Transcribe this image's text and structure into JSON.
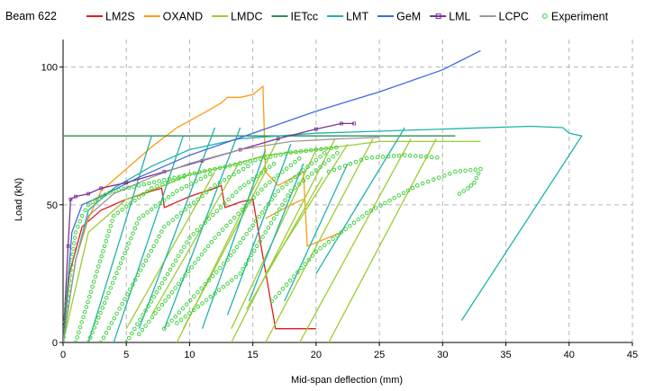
{
  "chart_data": {
    "type": "line",
    "title": "Beam 622",
    "xlabel": "Mid-span deflection (mm)",
    "ylabel": "Load (kN)",
    "xlim": [
      0,
      45
    ],
    "ylim": [
      0,
      110
    ],
    "xticks": [
      0,
      5,
      10,
      15,
      20,
      25,
      30,
      35,
      40,
      45
    ],
    "yticks": [
      0,
      50,
      100
    ],
    "grid": "dashed",
    "legend_position": "top",
    "series": [
      {
        "name": "LM2S",
        "color": "#e41a1c",
        "marker": "none",
        "segments": [
          [
            [
              0,
              0
            ],
            [
              0.5,
              25
            ],
            [
              1.5,
              42
            ],
            [
              3,
              48
            ],
            [
              5,
              52
            ],
            [
              7,
              55
            ],
            [
              7.8,
              56
            ],
            [
              8,
              49
            ],
            [
              9,
              51
            ],
            [
              10,
              53
            ],
            [
              12,
              56
            ],
            [
              12.5,
              57
            ],
            [
              12.8,
              49
            ],
            [
              14,
              51
            ],
            [
              15,
              52
            ],
            [
              16.8,
              5
            ],
            [
              20,
              5
            ]
          ]
        ]
      },
      {
        "name": "OXAND",
        "color": "#ff9912",
        "marker": "none",
        "segments": [
          [
            [
              0,
              0
            ],
            [
              1,
              30
            ],
            [
              2,
              45
            ],
            [
              3,
              55
            ],
            [
              5,
              63
            ],
            [
              7,
              71
            ],
            [
              9,
              78
            ],
            [
              11,
              83
            ],
            [
              12.5,
              87
            ],
            [
              13,
              89
            ],
            [
              14,
              89
            ],
            [
              15,
              90
            ],
            [
              15.8,
              93
            ],
            [
              16,
              62
            ],
            [
              17,
              57
            ],
            [
              19,
              62
            ],
            [
              19.3,
              35
            ],
            [
              22,
              40
            ]
          ],
          [
            [
              16,
              45
            ],
            [
              18,
              50
            ],
            [
              19,
              52
            ]
          ]
        ]
      },
      {
        "name": "LMDC",
        "color": "#9acd32",
        "marker": "none",
        "segments": [
          [
            [
              0,
              0
            ],
            [
              2,
              40
            ],
            [
              5,
              52
            ],
            [
              8,
              57
            ],
            [
              10,
              61
            ],
            [
              13,
              64
            ],
            [
              16,
              68
            ],
            [
              20,
              70
            ],
            [
              25,
              73
            ],
            [
              33,
              73
            ]
          ],
          [
            [
              9,
              0
            ],
            [
              17,
              74
            ]
          ],
          [
            [
              13.3,
              0
            ],
            [
              21.5,
              74
            ]
          ],
          [
            [
              16,
              0
            ],
            [
              24.5,
              74
            ]
          ],
          [
            [
              18.7,
              0
            ],
            [
              27.5,
              74
            ]
          ],
          [
            [
              21,
              0
            ],
            [
              29.5,
              74
            ]
          ],
          [
            [
              9.5,
              5
            ],
            [
              16,
              62
            ]
          ],
          [
            [
              13.3,
              5
            ],
            [
              20,
              70
            ]
          ],
          [
            [
              14.5,
              12
            ],
            [
              20.5,
              60
            ]
          ],
          [
            [
              16,
              25
            ],
            [
              22.5,
              72
            ]
          ],
          [
            [
              5,
              5
            ],
            [
              12,
              62
            ]
          ],
          [
            [
              7,
              10
            ],
            [
              14,
              66
            ]
          ]
        ]
      },
      {
        "name": "IETcc",
        "color": "#2e8b57",
        "marker": "none",
        "segments": [
          [
            [
              0,
              75
            ],
            [
              31,
              75
            ]
          ]
        ]
      },
      {
        "name": "LMT",
        "color": "#20b2aa",
        "marker": "none",
        "segments": [
          [
            [
              0,
              0
            ],
            [
              1,
              30
            ],
            [
              2,
              48
            ],
            [
              4,
              56
            ],
            [
              7,
              64
            ],
            [
              10,
              70
            ],
            [
              14,
              74
            ],
            [
              20,
              76
            ],
            [
              30,
              77.5
            ],
            [
              37,
              78.5
            ],
            [
              39.5,
              78
            ],
            [
              40,
              76
            ],
            [
              41,
              75
            ],
            [
              31.5,
              8
            ]
          ],
          [
            [
              2,
              0
            ],
            [
              7,
              75
            ]
          ],
          [
            [
              4,
              0
            ],
            [
              9.5,
              75
            ]
          ],
          [
            [
              6,
              5
            ],
            [
              12,
              78
            ]
          ],
          [
            [
              8,
              5
            ],
            [
              14,
              78
            ]
          ],
          [
            [
              11,
              5
            ],
            [
              16,
              70
            ]
          ],
          [
            [
              13,
              10
            ],
            [
              18,
              72
            ]
          ],
          [
            [
              14.7,
              15
            ],
            [
              19,
              65
            ]
          ],
          [
            [
              17.5,
              15
            ],
            [
              22.5,
              65
            ]
          ],
          [
            [
              20,
              25
            ],
            [
              27,
              78
            ]
          ]
        ]
      },
      {
        "name": "GeM",
        "color": "#4169e1",
        "marker": "none",
        "segments": [
          [
            [
              0,
              0
            ],
            [
              0.7,
              40
            ],
            [
              1.5,
              50
            ],
            [
              3,
              53
            ],
            [
              6,
              60
            ],
            [
              10,
              68
            ],
            [
              15,
              76
            ],
            [
              20,
              84
            ],
            [
              25,
              91
            ],
            [
              30,
              99
            ],
            [
              33,
              106
            ]
          ]
        ]
      },
      {
        "name": "LML",
        "color": "#7b3294",
        "marker": "square",
        "segments": [
          [
            [
              0,
              0
            ],
            [
              0.4,
              35
            ],
            [
              0.6,
              52
            ],
            [
              1,
              53
            ],
            [
              2,
              54
            ],
            [
              3,
              56
            ],
            [
              5,
              58
            ],
            [
              8,
              62
            ],
            [
              11,
              66
            ],
            [
              14,
              70
            ],
            [
              17,
              74
            ],
            [
              20,
              77.5
            ],
            [
              22,
              79.5
            ],
            [
              23,
              79.5
            ]
          ]
        ]
      },
      {
        "name": "LCPC",
        "color": "#999999",
        "marker": "none",
        "segments": [
          [
            [
              0,
              0
            ],
            [
              1,
              30
            ],
            [
              2,
              46
            ],
            [
              4,
              54
            ],
            [
              7,
              60
            ],
            [
              10,
              65
            ],
            [
              14,
              70
            ],
            [
              18,
              73
            ],
            [
              22,
              74
            ],
            [
              25,
              74.5
            ]
          ]
        ]
      },
      {
        "name": "Experiment",
        "color": "#32cd32",
        "marker": "circle",
        "segments": [
          [
            [
              0,
              0
            ],
            [
              0.3,
              15
            ],
            [
              0.7,
              30
            ],
            [
              1,
              40
            ],
            [
              1.5,
              46
            ],
            [
              2,
              50
            ],
            [
              3,
              53
            ],
            [
              4,
              55
            ],
            [
              6,
              57
            ],
            [
              8,
              59
            ],
            [
              10,
              61
            ],
            [
              12,
              63
            ],
            [
              14,
              65
            ],
            [
              16,
              67
            ],
            [
              18,
              69
            ],
            [
              20,
              70
            ],
            [
              22,
              71
            ]
          ],
          [
            [
              1,
              0
            ],
            [
              4,
              46
            ],
            [
              7,
              56
            ],
            [
              10,
              61
            ]
          ],
          [
            [
              2,
              0
            ],
            [
              6,
              45
            ],
            [
              9,
              55
            ],
            [
              12,
              62
            ]
          ],
          [
            [
              3,
              0
            ],
            [
              8,
              42
            ],
            [
              12,
              57
            ],
            [
              15,
              65
            ]
          ],
          [
            [
              5,
              0
            ],
            [
              10,
              38
            ],
            [
              14,
              56
            ],
            [
              17,
              66
            ]
          ],
          [
            [
              6,
              3
            ],
            [
              12,
              38
            ],
            [
              16,
              57
            ],
            [
              19,
              68
            ]
          ],
          [
            [
              8,
              5
            ],
            [
              13,
              30
            ],
            [
              17,
              55
            ],
            [
              21,
              70
            ]
          ],
          [
            [
              9,
              7
            ],
            [
              14,
              25
            ],
            [
              18,
              55
            ],
            [
              22,
              70
            ]
          ],
          [
            [
              16.5,
              15
            ],
            [
              20,
              33
            ],
            [
              24,
              47
            ],
            [
              28,
              57
            ],
            [
              31,
              62
            ],
            [
              33,
              63
            ],
            [
              32.5,
              58
            ],
            [
              32,
              56
            ],
            [
              31,
              53
            ]
          ],
          [
            [
              21,
              62
            ],
            [
              24,
              67
            ],
            [
              27,
              68
            ],
            [
              30,
              67
            ]
          ]
        ]
      }
    ]
  }
}
